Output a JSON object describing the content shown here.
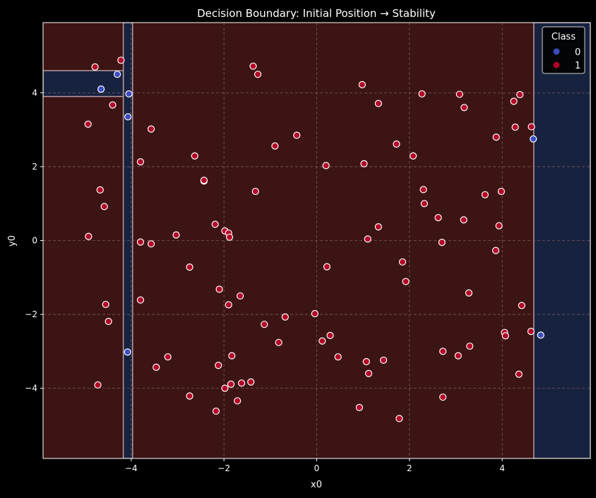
{
  "chart_data": {
    "type": "scatter",
    "title": "Decision Boundary: Initial Position → Stability",
    "xlabel": "x0",
    "ylabel": "y0",
    "xlim": [
      -5.9,
      5.9
    ],
    "ylim": [
      -5.9,
      5.9
    ],
    "xticks": [
      -4,
      -2,
      0,
      2,
      4
    ],
    "yticks": [
      -4,
      -2,
      0,
      2,
      4
    ],
    "xtick_labels": [
      "−4",
      "−2",
      "0",
      "2",
      "4"
    ],
    "ytick_labels": [
      "−4",
      "−2",
      "0",
      "2",
      "4"
    ],
    "grid": true,
    "legend": {
      "title": "Class",
      "placement": "top-right",
      "entries": [
        "0",
        "1"
      ]
    },
    "colors": {
      "background": "#000000",
      "region_class0": "#17223f",
      "region_class1": "#3c1414",
      "boundary": "#b89aa0",
      "class0": "#3b4cc0",
      "class1": "#b40426",
      "grid": "#8a6a6a"
    },
    "regions": {
      "class1_default": true,
      "class0_bands": [
        {
          "x_from": -4.17,
          "x_to": -3.97,
          "y_from": -5.9,
          "y_to": 5.9
        },
        {
          "x_from": -5.9,
          "x_to": -4.17,
          "y_from": 3.9,
          "y_to": 4.6
        },
        {
          "x_from": 4.68,
          "x_to": 5.9,
          "y_from": -5.9,
          "y_to": 5.9
        }
      ]
    },
    "series": [
      {
        "name": "0",
        "points": [
          [
            -4.3,
            4.5
          ],
          [
            -4.65,
            4.1
          ],
          [
            -4.05,
            3.97
          ],
          [
            -4.07,
            3.35
          ],
          [
            -4.08,
            -3.02
          ],
          [
            4.67,
            2.75
          ],
          [
            4.83,
            -2.56
          ]
        ]
      },
      {
        "name": "1",
        "points": [
          [
            -4.78,
            4.7
          ],
          [
            -4.22,
            4.88
          ],
          [
            -4.4,
            3.67
          ],
          [
            -4.93,
            3.15
          ],
          [
            -3.57,
            3.02
          ],
          [
            -3.8,
            2.13
          ],
          [
            -4.67,
            1.37
          ],
          [
            -4.58,
            0.92
          ],
          [
            -4.92,
            0.11
          ],
          [
            -3.8,
            -0.04
          ],
          [
            -3.57,
            -0.09
          ],
          [
            -4.55,
            -1.73
          ],
          [
            -4.49,
            -2.19
          ],
          [
            -4.72,
            -3.91
          ],
          [
            -3.8,
            -1.61
          ],
          [
            -3.46,
            -3.43
          ],
          [
            -3.21,
            -3.15
          ],
          [
            -3.03,
            0.15
          ],
          [
            -2.74,
            -0.72
          ],
          [
            -2.74,
            -4.21
          ],
          [
            -2.63,
            2.29
          ],
          [
            -2.43,
            1.61
          ],
          [
            -2.43,
            1.63
          ],
          [
            -2.19,
            0.44
          ],
          [
            -2.12,
            -3.38
          ],
          [
            -2.1,
            -1.32
          ],
          [
            -2.17,
            -4.62
          ],
          [
            -1.98,
            0.26
          ],
          [
            -1.9,
            0.2
          ],
          [
            -1.88,
            0.09
          ],
          [
            -1.9,
            -1.74
          ],
          [
            -1.98,
            -4.0
          ],
          [
            -1.85,
            -3.89
          ],
          [
            -1.83,
            -3.12
          ],
          [
            -1.65,
            -1.5
          ],
          [
            -1.71,
            -4.34
          ],
          [
            -1.62,
            -3.86
          ],
          [
            -1.42,
            -3.83
          ],
          [
            -1.37,
            4.72
          ],
          [
            -1.27,
            4.5
          ],
          [
            -1.32,
            1.33
          ],
          [
            -1.13,
            -2.27
          ],
          [
            -0.9,
            2.56
          ],
          [
            -0.82,
            -2.76
          ],
          [
            -0.68,
            -2.07
          ],
          [
            -0.43,
            2.85
          ],
          [
            -0.04,
            -1.98
          ],
          [
            0.12,
            -2.72
          ],
          [
            0.2,
            2.03
          ],
          [
            0.22,
            -0.71
          ],
          [
            0.29,
            -2.57
          ],
          [
            0.46,
            -3.15
          ],
          [
            0.98,
            4.22
          ],
          [
            1.02,
            2.08
          ],
          [
            0.92,
            -4.52
          ],
          [
            1.07,
            -3.28
          ],
          [
            1.1,
            0.04
          ],
          [
            1.12,
            -3.6
          ],
          [
            1.33,
            3.71
          ],
          [
            1.33,
            0.37
          ],
          [
            1.44,
            -3.24
          ],
          [
            1.72,
            2.61
          ],
          [
            1.85,
            -0.58
          ],
          [
            1.92,
            -1.11
          ],
          [
            1.78,
            -4.82
          ],
          [
            2.08,
            2.29
          ],
          [
            2.27,
            3.97
          ],
          [
            2.3,
            1.38
          ],
          [
            2.32,
            1.0
          ],
          [
            2.62,
            0.62
          ],
          [
            2.7,
            -0.05
          ],
          [
            2.72,
            -3.0
          ],
          [
            2.72,
            -4.24
          ],
          [
            3.08,
            3.96
          ],
          [
            3.18,
            3.6
          ],
          [
            3.17,
            0.56
          ],
          [
            3.05,
            -3.12
          ],
          [
            3.28,
            -1.42
          ],
          [
            3.3,
            -2.86
          ],
          [
            3.63,
            1.24
          ],
          [
            3.87,
            2.8
          ],
          [
            3.86,
            -0.27
          ],
          [
            3.93,
            0.4
          ],
          [
            3.98,
            1.33
          ],
          [
            4.05,
            -2.49
          ],
          [
            4.07,
            -2.58
          ],
          [
            4.25,
            3.77
          ],
          [
            4.28,
            3.07
          ],
          [
            4.38,
            3.95
          ],
          [
            4.36,
            -3.62
          ],
          [
            4.42,
            -1.76
          ],
          [
            4.63,
            3.08
          ],
          [
            4.62,
            -2.46
          ]
        ]
      }
    ]
  }
}
